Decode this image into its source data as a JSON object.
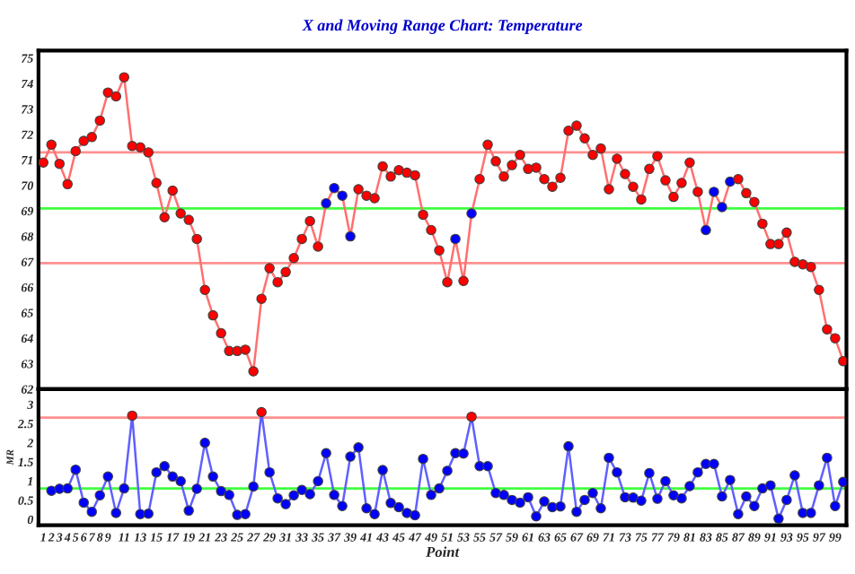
{
  "chart_data": [
    {
      "type": "line",
      "title": "X and Moving Range Chart: Temperature",
      "x": [
        1,
        2,
        3,
        4,
        5,
        6,
        7,
        8,
        9,
        10,
        11,
        12,
        13,
        14,
        15,
        16,
        17,
        18,
        19,
        20,
        21,
        22,
        23,
        24,
        25,
        26,
        27,
        28,
        29,
        30,
        31,
        32,
        33,
        34,
        35,
        36,
        37,
        38,
        39,
        40,
        41,
        42,
        43,
        44,
        45,
        46,
        47,
        48,
        49,
        50,
        51,
        52,
        53,
        54,
        55,
        56,
        57,
        58,
        59,
        60,
        61,
        62,
        63,
        64,
        65,
        66,
        67,
        68,
        69,
        70,
        71,
        72,
        73,
        74,
        75,
        76,
        77,
        78,
        79,
        80,
        81,
        82,
        83,
        84,
        85,
        86,
        87,
        88,
        89,
        90,
        91,
        92,
        93,
        94,
        95,
        96,
        97,
        98,
        99,
        100
      ],
      "series": [
        {
          "color": "#ff7070",
          "values": [
            70.9,
            71.6,
            70.85,
            70.05,
            71.35,
            71.75,
            71.9,
            72.55,
            73.65,
            73.5,
            74.25,
            71.55,
            71.5,
            71.3,
            70.1,
            68.75,
            69.8,
            68.9,
            68.65,
            67.9,
            65.9,
            64.9,
            64.2,
            63.5,
            63.5,
            63.55,
            62.7,
            65.55,
            66.75,
            66.2,
            66.6,
            67.15,
            67.9,
            68.6,
            67.6,
            69.3,
            69.9,
            69.6,
            68.0,
            69.85,
            69.6,
            69.5,
            70.75,
            70.35,
            70.6,
            70.5,
            70.4,
            68.85,
            68.25,
            67.45,
            66.2,
            67.9,
            66.25,
            68.9,
            70.25,
            71.6,
            70.95,
            70.35,
            70.8,
            71.2,
            70.65,
            70.7,
            70.25,
            69.95,
            70.3,
            72.15,
            72.35,
            71.85,
            71.2,
            71.45,
            69.85,
            71.05,
            70.45,
            69.95,
            69.45,
            70.65,
            71.15,
            70.2,
            69.55,
            70.1,
            70.9,
            69.75,
            68.25,
            69.75,
            69.15,
            70.15,
            70.25,
            69.7,
            69.35,
            68.5,
            67.7,
            67.7,
            68.15,
            67.0,
            66.9,
            66.8,
            65.9,
            64.35,
            64.0,
            63.1
          ],
          "colors": [
            "#ff0000",
            "#ff0000",
            "#ff0000",
            "#ff0000",
            "#ff0000",
            "#ff0000",
            "#ff0000",
            "#ff0000",
            "#ff0000",
            "#ff0000",
            "#ff0000",
            "#ff0000",
            "#ff0000",
            "#ff0000",
            "#ff0000",
            "#ff0000",
            "#ff0000",
            "#ff0000",
            "#ff0000",
            "#ff0000",
            "#ff0000",
            "#ff0000",
            "#ff0000",
            "#ff0000",
            "#ff0000",
            "#ff0000",
            "#ff0000",
            "#ff0000",
            "#ff0000",
            "#ff0000",
            "#ff0000",
            "#ff0000",
            "#ff0000",
            "#ff0000",
            "#ff0000",
            "#0000ff",
            "#0000ff",
            "#0000ff",
            "#0000ff",
            "#ff0000",
            "#ff0000",
            "#ff0000",
            "#ff0000",
            "#ff0000",
            "#ff0000",
            "#ff0000",
            "#ff0000",
            "#ff0000",
            "#ff0000",
            "#ff0000",
            "#ff0000",
            "#0000ff",
            "#ff0000",
            "#0000ff",
            "#ff0000",
            "#ff0000",
            "#ff0000",
            "#ff0000",
            "#ff0000",
            "#ff0000",
            "#ff0000",
            "#ff0000",
            "#ff0000",
            "#ff0000",
            "#ff0000",
            "#ff0000",
            "#ff0000",
            "#ff0000",
            "#ff0000",
            "#ff0000",
            "#ff0000",
            "#ff0000",
            "#ff0000",
            "#ff0000",
            "#ff0000",
            "#ff0000",
            "#ff0000",
            "#ff0000",
            "#ff0000",
            "#ff0000",
            "#ff0000",
            "#ff0000",
            "#0000ff",
            "#0000ff",
            "#0000ff",
            "#0000ff",
            "#ff0000",
            "#ff0000",
            "#ff0000",
            "#ff0000",
            "#ff0000",
            "#ff0000",
            "#ff0000",
            "#ff0000",
            "#ff0000",
            "#ff0000",
            "#ff0000",
            "#ff0000",
            "#ff0000",
            "#ff0000"
          ]
        }
      ],
      "marker": "circle",
      "grid": false,
      "tick_labels": "y",
      "xlim": [
        0.4,
        100.4
      ],
      "ylim": [
        62,
        75.3
      ],
      "yticks": [
        62,
        63,
        64,
        65,
        66,
        67,
        68,
        69,
        70,
        71,
        72,
        73,
        74,
        75
      ],
      "ref_lines": [
        {
          "axis": "y",
          "value": 71.3,
          "color": "#ff9090"
        },
        {
          "axis": "y",
          "value": 69.1,
          "color": "#40ff40"
        },
        {
          "axis": "y",
          "value": 66.95,
          "color": "#ff9090"
        }
      ]
    },
    {
      "type": "line",
      "xlabel": "Point",
      "ylabel": "MR",
      "x": [
        2,
        3,
        4,
        5,
        6,
        7,
        8,
        9,
        10,
        11,
        12,
        13,
        14,
        15,
        16,
        17,
        18,
        19,
        20,
        21,
        22,
        23,
        24,
        25,
        26,
        27,
        28,
        29,
        30,
        31,
        32,
        33,
        34,
        35,
        36,
        37,
        38,
        39,
        40,
        41,
        42,
        43,
        44,
        45,
        46,
        47,
        48,
        49,
        50,
        51,
        52,
        53,
        54,
        55,
        56,
        57,
        58,
        59,
        60,
        61,
        62,
        63,
        64,
        65,
        66,
        67,
        68,
        69,
        70,
        71,
        72,
        73,
        74,
        75,
        76,
        77,
        78,
        79,
        80,
        81,
        82,
        83,
        84,
        85,
        86,
        87,
        88,
        89,
        90,
        91,
        92,
        93,
        94,
        95,
        96,
        97,
        98,
        99,
        100
      ],
      "series": [
        {
          "color": "#6060ff",
          "values": [
            0.75,
            0.8,
            0.81,
            1.3,
            0.44,
            0.2,
            0.63,
            1.12,
            0.17,
            0.81,
            2.71,
            0.14,
            0.15,
            1.23,
            1.39,
            1.12,
            1.0,
            0.23,
            0.8,
            2.0,
            1.12,
            0.74,
            0.64,
            0.12,
            0.14,
            0.86,
            2.8,
            1.23,
            0.55,
            0.4,
            0.63,
            0.77,
            0.66,
            1.0,
            1.73,
            0.64,
            0.35,
            1.64,
            1.88,
            0.29,
            0.14,
            1.29,
            0.43,
            0.32,
            0.17,
            0.11,
            1.58,
            0.64,
            0.81,
            1.27,
            1.73,
            1.72,
            2.68,
            1.39,
            1.39,
            0.69,
            0.64,
            0.51,
            0.44,
            0.58,
            0.08,
            0.47,
            0.32,
            0.34,
            1.91,
            0.2,
            0.51,
            0.69,
            0.29,
            1.61,
            1.23,
            0.58,
            0.57,
            0.49,
            1.21,
            0.54,
            1.0,
            0.63,
            0.55,
            0.87,
            1.23,
            1.45,
            1.45,
            0.6,
            1.03,
            0.14,
            0.6,
            0.35,
            0.81,
            0.89,
            0.02,
            0.51,
            1.15,
            0.17,
            0.17,
            0.89,
            1.61,
            0.35,
            0.98
          ],
          "colors": [
            "#0000ff",
            "#0000ff",
            "#0000ff",
            "#0000ff",
            "#0000ff",
            "#0000ff",
            "#0000ff",
            "#0000ff",
            "#0000ff",
            "#0000ff",
            "#ff0000",
            "#0000ff",
            "#0000ff",
            "#0000ff",
            "#0000ff",
            "#0000ff",
            "#0000ff",
            "#0000ff",
            "#0000ff",
            "#0000ff",
            "#0000ff",
            "#0000ff",
            "#0000ff",
            "#0000ff",
            "#0000ff",
            "#0000ff",
            "#ff0000",
            "#0000ff",
            "#0000ff",
            "#0000ff",
            "#0000ff",
            "#0000ff",
            "#0000ff",
            "#0000ff",
            "#0000ff",
            "#0000ff",
            "#0000ff",
            "#0000ff",
            "#0000ff",
            "#0000ff",
            "#0000ff",
            "#0000ff",
            "#0000ff",
            "#0000ff",
            "#0000ff",
            "#0000ff",
            "#0000ff",
            "#0000ff",
            "#0000ff",
            "#0000ff",
            "#0000ff",
            "#0000ff",
            "#ff0000",
            "#0000ff",
            "#0000ff",
            "#0000ff",
            "#0000ff",
            "#0000ff",
            "#0000ff",
            "#0000ff",
            "#0000ff",
            "#0000ff",
            "#0000ff",
            "#0000ff",
            "#0000ff",
            "#0000ff",
            "#0000ff",
            "#0000ff",
            "#0000ff",
            "#0000ff",
            "#0000ff",
            "#0000ff",
            "#0000ff",
            "#0000ff",
            "#0000ff",
            "#0000ff",
            "#0000ff",
            "#0000ff",
            "#0000ff",
            "#0000ff",
            "#0000ff",
            "#0000ff",
            "#0000ff",
            "#0000ff",
            "#0000ff",
            "#0000ff",
            "#0000ff",
            "#0000ff",
            "#0000ff",
            "#0000ff",
            "#0000ff",
            "#0000ff",
            "#0000ff",
            "#0000ff",
            "#0000ff",
            "#0000ff",
            "#0000ff",
            "#0000ff",
            "#0000ff"
          ]
        }
      ],
      "marker": "circle",
      "grid": false,
      "xlim": [
        0.4,
        100.4
      ],
      "xticks": [
        1,
        2,
        3,
        4,
        5,
        6,
        7,
        8,
        9,
        11,
        13,
        15,
        17,
        19,
        21,
        23,
        25,
        27,
        29,
        31,
        33,
        35,
        37,
        39,
        41,
        43,
        45,
        47,
        49,
        51,
        53,
        55,
        57,
        59,
        61,
        63,
        65,
        67,
        69,
        71,
        73,
        75,
        77,
        79,
        81,
        83,
        85,
        87,
        89,
        91,
        93,
        95,
        97,
        99
      ],
      "ylim": [
        -0.15,
        3.4
      ],
      "yticks": [
        0,
        0.5,
        1,
        1.5,
        2,
        2.5,
        3
      ],
      "ref_lines": [
        {
          "axis": "y",
          "value": 2.66,
          "color": "#ff9090"
        },
        {
          "axis": "y",
          "value": 0.81,
          "color": "#40ff40"
        }
      ]
    }
  ]
}
